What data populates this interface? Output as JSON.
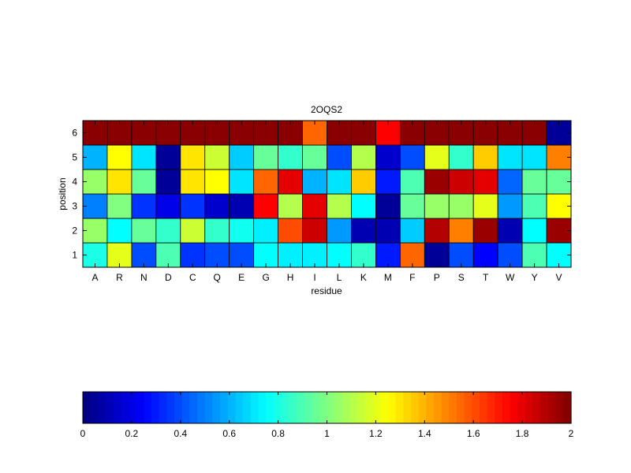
{
  "chart_data": {
    "type": "heatmap",
    "title": "2OQS2",
    "xlabel": "residue",
    "ylabel": "position",
    "x_categories": [
      "A",
      "R",
      "N",
      "D",
      "C",
      "Q",
      "E",
      "G",
      "H",
      "I",
      "L",
      "K",
      "M",
      "F",
      "P",
      "S",
      "T",
      "W",
      "Y",
      "V"
    ],
    "y_categories": [
      "1",
      "2",
      "3",
      "4",
      "5",
      "6"
    ],
    "values": [
      [
        0.8,
        1.2,
        0.4,
        0.9,
        0.35,
        0.4,
        0.4,
        0.75,
        0.72,
        0.72,
        0.75,
        0.85,
        0.3,
        1.55,
        0.05,
        0.4,
        0.25,
        0.4,
        0.9,
        0.75
      ],
      [
        1.05,
        0.75,
        0.95,
        0.85,
        1.15,
        0.85,
        0.78,
        0.72,
        1.6,
        1.85,
        0.55,
        0.1,
        0.1,
        0.65,
        1.9,
        1.5,
        1.95,
        0.1,
        0.75,
        1.95
      ],
      [
        0.5,
        1.0,
        0.35,
        0.2,
        0.35,
        0.15,
        0.1,
        1.75,
        1.1,
        1.8,
        1.1,
        0.75,
        0.05,
        0.95,
        1.05,
        1.05,
        1.2,
        0.55,
        0.9,
        1.25
      ],
      [
        1.05,
        1.3,
        0.95,
        0.05,
        1.3,
        1.25,
        0.7,
        1.55,
        1.8,
        0.6,
        0.7,
        1.35,
        0.3,
        0.9,
        1.95,
        1.85,
        1.8,
        0.45,
        0.95,
        0.95
      ],
      [
        0.6,
        1.25,
        0.7,
        0.05,
        1.3,
        1.15,
        0.65,
        0.95,
        0.85,
        0.95,
        0.4,
        1.1,
        0.15,
        0.4,
        1.2,
        0.85,
        1.35,
        0.7,
        0.7,
        1.5
      ],
      [
        1.98,
        1.98,
        1.98,
        1.98,
        1.98,
        1.98,
        1.98,
        1.98,
        1.98,
        1.55,
        1.98,
        1.98,
        1.75,
        1.98,
        1.98,
        1.98,
        1.98,
        1.98,
        1.98,
        0.05
      ]
    ],
    "colormap": "jet",
    "clim": [
      0,
      2
    ],
    "colorbar": {
      "orientation": "horizontal",
      "placement": "bottom",
      "ticks": [
        "0",
        "0.2",
        "0.4",
        "0.6",
        "0.8",
        "1",
        "1.2",
        "1.4",
        "1.6",
        "1.8",
        "2"
      ]
    },
    "grid": false
  },
  "colors": {
    "background": "#ffffff",
    "axis": "#000000",
    "cell_border": "#000000"
  }
}
